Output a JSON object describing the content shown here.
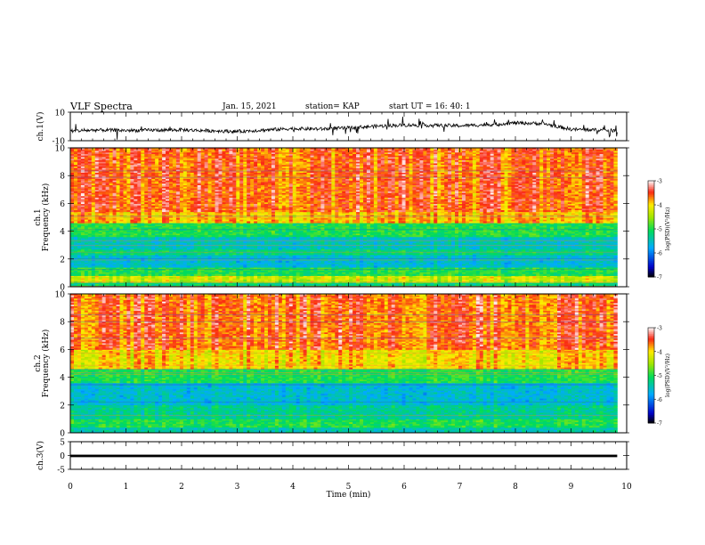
{
  "header": {
    "title": "VLF Spectra",
    "date": "Jan. 15, 2021",
    "station": "station= KAP",
    "start_ut": "start  UT =   16: 40: 1"
  },
  "chart_data": [
    {
      "type": "line",
      "name": "ch1-waveform",
      "ylabel": "ch.1(V)",
      "ylim": [
        -10,
        10
      ],
      "yticks": [
        "10",
        "-10"
      ],
      "xlim": [
        0,
        10
      ],
      "x_extent_min": 9.83,
      "mean_trend_x": [
        0,
        0.5,
        1,
        1.5,
        2,
        2.5,
        3,
        3.5,
        4,
        4.5,
        5,
        5.5,
        6,
        6.5,
        7,
        7.5,
        8,
        8.5,
        9,
        9.5,
        9.83
      ],
      "mean_trend_y": [
        -3.2,
        -2.5,
        -2.8,
        -2.6,
        -2.4,
        -3,
        -3.5,
        -2.5,
        -1.5,
        -1.8,
        -1.0,
        0.2,
        1.0,
        0.8,
        0.5,
        1.2,
        2.5,
        2.0,
        -2.0,
        -2.5,
        -3.0
      ]
    },
    {
      "type": "heatmap",
      "name": "ch1-spectrogram",
      "ylabel": "ch.1\nFrequency (kHz)",
      "ylim": [
        0,
        10
      ],
      "yticks": [
        "0",
        "2",
        "4",
        "6",
        "8",
        "10"
      ],
      "xlim": [
        0,
        10
      ],
      "colorbar": {
        "label": "log(PSD)(V²/Hz)",
        "range": [
          -7,
          -3
        ],
        "ticks": [
          "-3",
          "-4",
          "-5",
          "-6",
          "-7"
        ]
      },
      "bands_khz": [
        {
          "from": 0,
          "to": 0.3,
          "level": -5.2
        },
        {
          "from": 0.3,
          "to": 0.8,
          "level": -4.3
        },
        {
          "from": 0.8,
          "to": 1.4,
          "level": -5.0
        },
        {
          "from": 1.4,
          "to": 2.3,
          "level": -5.6
        },
        {
          "from": 2.3,
          "to": 2.7,
          "level": -5.2
        },
        {
          "from": 2.7,
          "to": 3.6,
          "level": -5.5
        },
        {
          "from": 3.6,
          "to": 4.6,
          "level": -5.0
        },
        {
          "from": 4.6,
          "to": 5.4,
          "level": -3.9
        },
        {
          "from": 5.4,
          "to": 10.0,
          "level": -3.6
        }
      ]
    },
    {
      "type": "heatmap",
      "name": "ch2-spectrogram",
      "ylabel": "ch.2\nFrequency (kHz)",
      "ylim": [
        0,
        10
      ],
      "yticks": [
        "0",
        "2",
        "4",
        "6",
        "8",
        "10"
      ],
      "xlim": [
        0,
        10
      ],
      "colorbar": {
        "label": "log(PSD)(V²/Hz)",
        "range": [
          -7,
          -3
        ],
        "ticks": [
          "-3",
          "-4",
          "-5",
          "-6",
          "-7"
        ]
      },
      "bands_khz": [
        {
          "from": 0,
          "to": 0.4,
          "level": -5.4
        },
        {
          "from": 0.4,
          "to": 1.0,
          "level": -5.0
        },
        {
          "from": 1.0,
          "to": 2.0,
          "level": -5.3
        },
        {
          "from": 2.0,
          "to": 3.6,
          "level": -5.6
        },
        {
          "from": 3.6,
          "to": 4.6,
          "level": -5.0
        },
        {
          "from": 4.6,
          "to": 6.0,
          "level": -4.0
        },
        {
          "from": 6.0,
          "to": 10.0,
          "level": -3.6
        }
      ]
    },
    {
      "type": "line",
      "name": "ch3-waveform",
      "ylabel": "ch.3(V)",
      "ylim": [
        -5,
        5
      ],
      "yticks": [
        "5",
        "0",
        "-5"
      ],
      "xlim": [
        0,
        10
      ],
      "x_extent_min": 9.83,
      "band_y": [
        -0.6,
        0.3
      ]
    }
  ],
  "x_axis": {
    "label": "Time (min)",
    "ticks": [
      "0",
      "1",
      "2",
      "3",
      "4",
      "5",
      "6",
      "7",
      "8",
      "9",
      "10"
    ]
  }
}
